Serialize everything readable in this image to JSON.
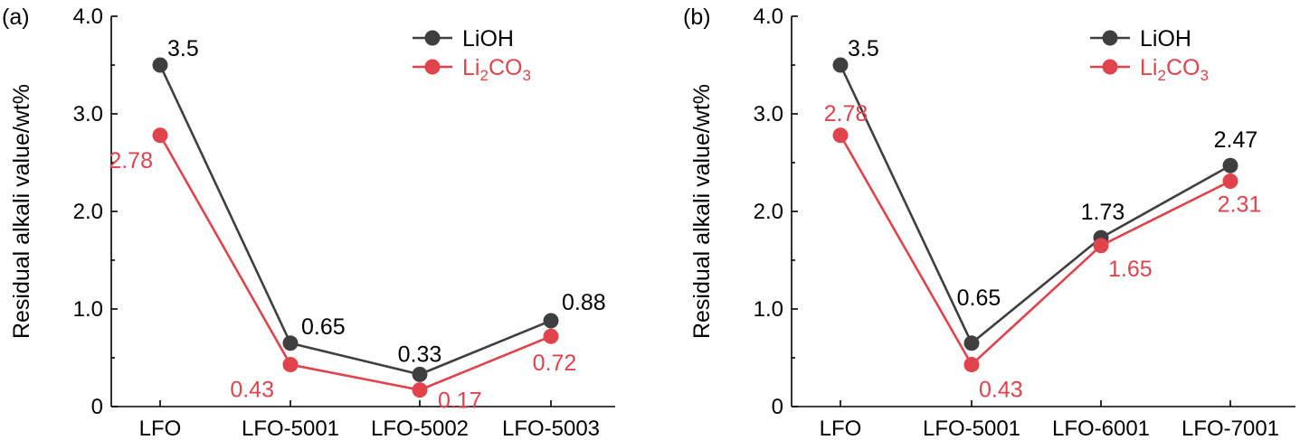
{
  "chart_data": [
    {
      "type": "line",
      "panel_label": "(a)",
      "categories": [
        "LFO",
        "LFO-5001",
        "LFO-5002",
        "LFO-5003"
      ],
      "series": [
        {
          "name": "LiOH",
          "color": "#3f3f3f",
          "values": [
            3.5,
            0.65,
            0.33,
            0.88
          ],
          "labels": [
            "3.5",
            "0.65",
            "0.33",
            "0.88"
          ]
        },
        {
          "name": "Li2CO3",
          "name_parts": [
            "Li",
            "2",
            "CO",
            "3"
          ],
          "color": "#e0434b",
          "values": [
            2.78,
            0.43,
            0.17,
            0.72
          ],
          "labels": [
            "2.78",
            "0.43",
            "0.17",
            "0.72"
          ]
        }
      ],
      "ylabel": "Residual alkali value/wt%",
      "xlabel": "",
      "ylim": [
        0,
        4.0
      ],
      "yticks": [
        0,
        1.0,
        2.0,
        3.0,
        4.0
      ],
      "ytick_labels": [
        "0",
        "1.0",
        "2.0",
        "3.0",
        "4.0"
      ],
      "legend": "top-right"
    },
    {
      "type": "line",
      "panel_label": "(b)",
      "categories": [
        "LFO",
        "LFO-5001",
        "LFO-6001",
        "LFO-7001"
      ],
      "series": [
        {
          "name": "LiOH",
          "color": "#3f3f3f",
          "values": [
            3.5,
            0.65,
            1.73,
            2.47
          ],
          "labels": [
            "3.5",
            "0.65",
            "1.73",
            "2.47"
          ]
        },
        {
          "name": "Li2CO3",
          "name_parts": [
            "Li",
            "2",
            "CO",
            "3"
          ],
          "color": "#e0434b",
          "values": [
            2.78,
            0.43,
            1.65,
            2.31
          ],
          "labels": [
            "2.78",
            "0.43",
            "1.65",
            "2.31"
          ]
        }
      ],
      "ylabel": "Residual alkali value/wt%",
      "xlabel": "",
      "ylim": [
        0,
        4.0
      ],
      "yticks": [
        0,
        1.0,
        2.0,
        3.0,
        4.0
      ],
      "ytick_labels": [
        "0",
        "1.0",
        "2.0",
        "3.0",
        "4.0"
      ],
      "legend": "top-right"
    }
  ]
}
